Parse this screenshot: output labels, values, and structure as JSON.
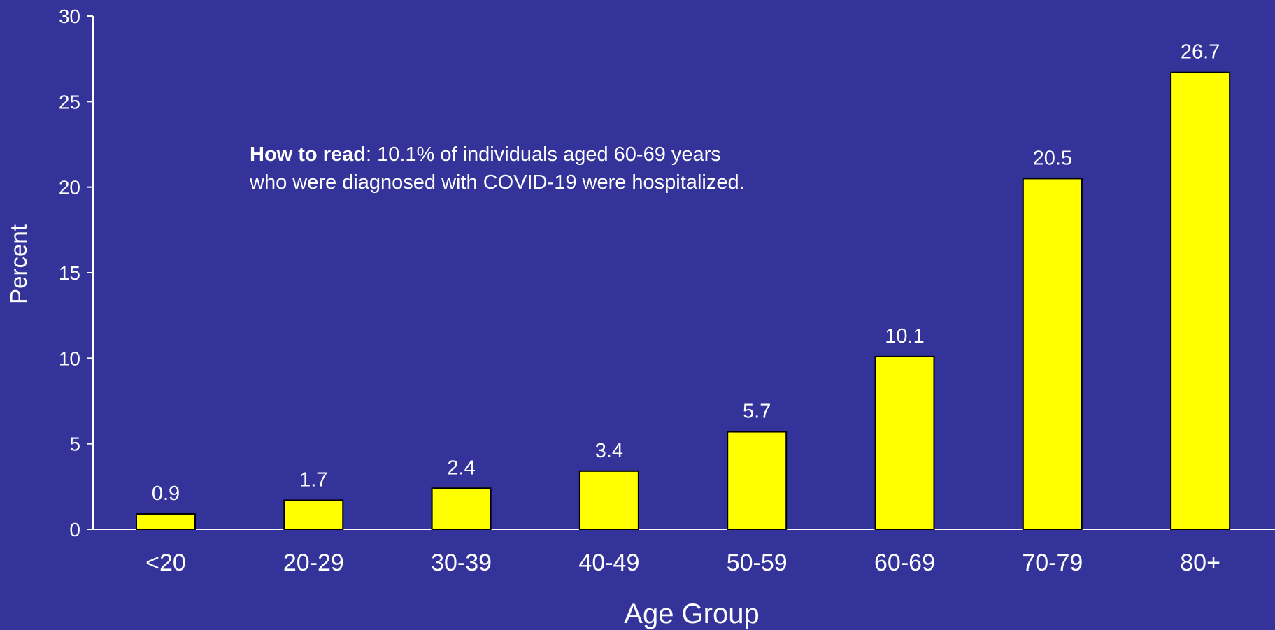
{
  "colors": {
    "background": "#333399",
    "bar_fill": "#ffff00",
    "bar_stroke": "#000000",
    "text": "#ffffff",
    "axis": "#ffffff"
  },
  "annotation": {
    "label": "How to read",
    "line1": ":  10.1% of individuals aged 60-69 years",
    "line2": "who were diagnosed with COVID-19 were hospitalized."
  },
  "chart_data": {
    "type": "bar",
    "title": "",
    "xlabel": "Age Group",
    "ylabel": "Percent",
    "categories": [
      "<20",
      "20-29",
      "30-39",
      "40-49",
      "50-59",
      "60-69",
      "70-79",
      "80+"
    ],
    "values": [
      0.9,
      1.7,
      2.4,
      3.4,
      5.7,
      10.1,
      20.5,
      26.7
    ],
    "data_labels": [
      "0.9",
      "1.7",
      "2.4",
      "3.4",
      "5.7",
      "10.1",
      "20.5",
      "26.7"
    ],
    "ylim": [
      0,
      30
    ],
    "yticks": [
      0,
      5,
      10,
      15,
      20,
      25,
      30
    ],
    "ytick_labels": [
      "0",
      "5",
      "10",
      "15",
      "20",
      "25",
      "30"
    ],
    "grid": false,
    "legend": "none"
  }
}
